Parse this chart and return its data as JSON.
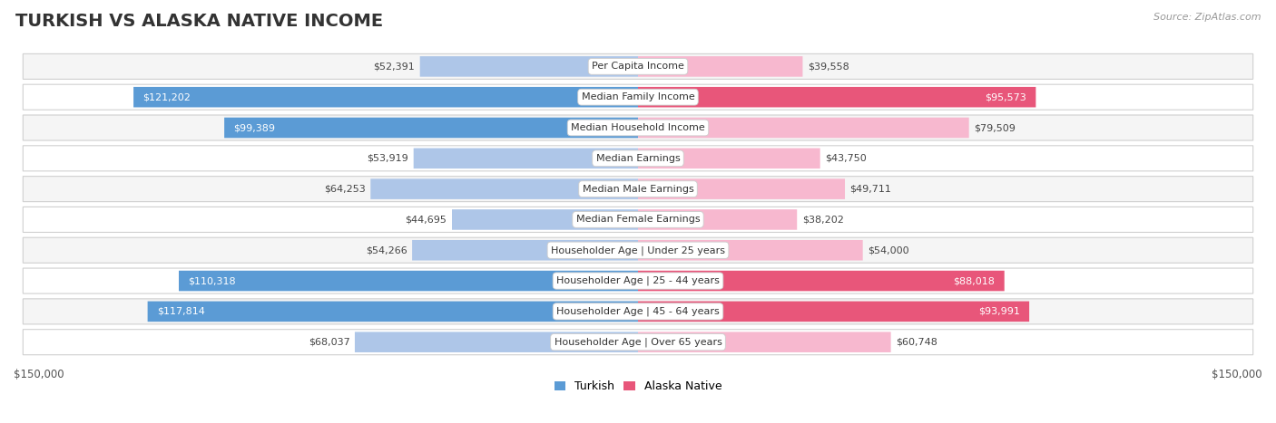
{
  "title": "TURKISH VS ALASKA NATIVE INCOME",
  "source": "Source: ZipAtlas.com",
  "categories": [
    "Per Capita Income",
    "Median Family Income",
    "Median Household Income",
    "Median Earnings",
    "Median Male Earnings",
    "Median Female Earnings",
    "Householder Age | Under 25 years",
    "Householder Age | 25 - 44 years",
    "Householder Age | 45 - 64 years",
    "Householder Age | Over 65 years"
  ],
  "turkish_values": [
    52391,
    121202,
    99389,
    53919,
    64253,
    44695,
    54266,
    110318,
    117814,
    68037
  ],
  "alaska_values": [
    39558,
    95573,
    79509,
    43750,
    49711,
    38202,
    54000,
    88018,
    93991,
    60748
  ],
  "max_value": 150000,
  "turkish_color_light": "#aec6e8",
  "turkish_color_dark": "#5b9bd5",
  "alaska_color_light": "#f7b8cf",
  "alaska_color_dark": "#e8567a",
  "label_white": "#ffffff",
  "label_dark": "#444444",
  "row_bg_light": "#f5f5f5",
  "row_bg_white": "#ffffff",
  "border_color": "#d0d0d0",
  "xlabel_left": "$150,000",
  "xlabel_right": "$150,000",
  "legend_turkish": "Turkish",
  "legend_alaska": "Alaska Native",
  "title_fontsize": 14,
  "source_fontsize": 8,
  "label_fontsize": 8,
  "category_fontsize": 8,
  "axis_fontsize": 8.5,
  "dark_threshold_t": 85000,
  "dark_threshold_a": 80000
}
